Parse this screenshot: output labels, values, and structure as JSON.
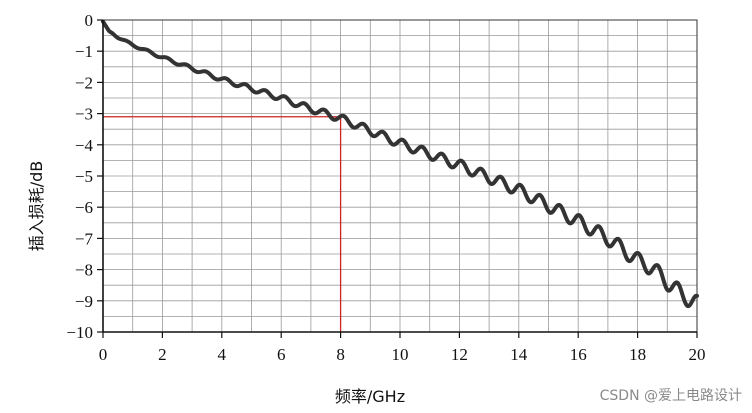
{
  "watermark": "CSDN @爱上电路设计",
  "chart_data": {
    "type": "line",
    "title": "",
    "xlabel": "频率/GHz",
    "ylabel": "插入损耗/dB",
    "xlim": [
      0,
      20
    ],
    "ylim": [
      -10,
      0
    ],
    "x_ticks": [
      0,
      2,
      4,
      6,
      8,
      10,
      12,
      14,
      16,
      18,
      20
    ],
    "y_ticks": [
      0,
      -1,
      -2,
      -3,
      -4,
      -5,
      -6,
      -7,
      -8,
      -9,
      -10
    ],
    "grid": true,
    "series": [
      {
        "color": "#333333",
        "x": [
          0,
          0.2,
          0.5,
          1,
          1.5,
          2,
          3,
          4,
          5,
          6,
          7,
          8,
          9,
          10,
          11,
          12,
          13,
          14,
          15,
          16,
          17,
          18,
          18.5,
          19,
          19.5,
          20
        ],
        "y": [
          -0.05,
          -0.35,
          -0.55,
          -0.8,
          -1.0,
          -1.2,
          -1.55,
          -1.9,
          -2.2,
          -2.5,
          -2.85,
          -3.15,
          -3.55,
          -3.95,
          -4.3,
          -4.65,
          -5.05,
          -5.45,
          -5.95,
          -6.45,
          -7.0,
          -7.7,
          -7.95,
          -8.4,
          -8.8,
          -9.1
        ]
      }
    ],
    "annotation": {
      "x": 8,
      "y": -3.1,
      "color": "#cc2222"
    }
  }
}
